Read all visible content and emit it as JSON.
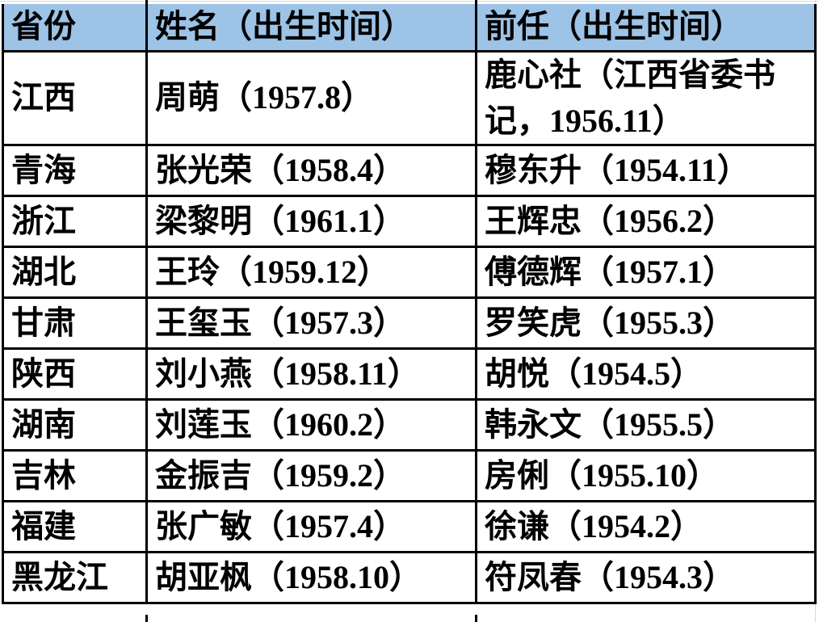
{
  "colors": {
    "header_bg": "#9DC3E6",
    "border": "#000000",
    "gridline": "#D8D8D8",
    "text": "#000000"
  },
  "chart_data": {
    "type": "table",
    "columns": [
      "省份",
      "姓名（出生时间）",
      "前任（出生时间）"
    ],
    "rows": [
      {
        "province": "江西",
        "incumbent": "周萌（1957.8）",
        "predecessor": "鹿心社（江西省委书记，1956.11）"
      },
      {
        "province": "青海",
        "incumbent": "张光荣（1958.4）",
        "predecessor": "穆东升（1954.11）"
      },
      {
        "province": "浙江",
        "incumbent": "梁黎明（1961.1）",
        "predecessor": "王辉忠（1956.2）"
      },
      {
        "province": "湖北",
        "incumbent": "王玲（1959.12）",
        "predecessor": "傅德辉（1957.1）"
      },
      {
        "province": "甘肃",
        "incumbent": "王玺玉（1957.3）",
        "predecessor": "罗笑虎（1955.3）"
      },
      {
        "province": "陕西",
        "incumbent": "刘小燕（1958.11）",
        "predecessor": "胡悦（1954.5）"
      },
      {
        "province": "湖南",
        "incumbent": "刘莲玉（1960.2）",
        "predecessor": "韩永文（1955.5）"
      },
      {
        "province": "吉林",
        "incumbent": "金振吉（1959.2）",
        "predecessor": "房俐（1955.10）"
      },
      {
        "province": "福建",
        "incumbent": "张广敏（1957.4）",
        "predecessor": "徐谦（1954.2）"
      },
      {
        "province": "黑龙江",
        "incumbent": "胡亚枫（1958.10）",
        "predecessor": "符凤春（1954.3）"
      }
    ]
  }
}
